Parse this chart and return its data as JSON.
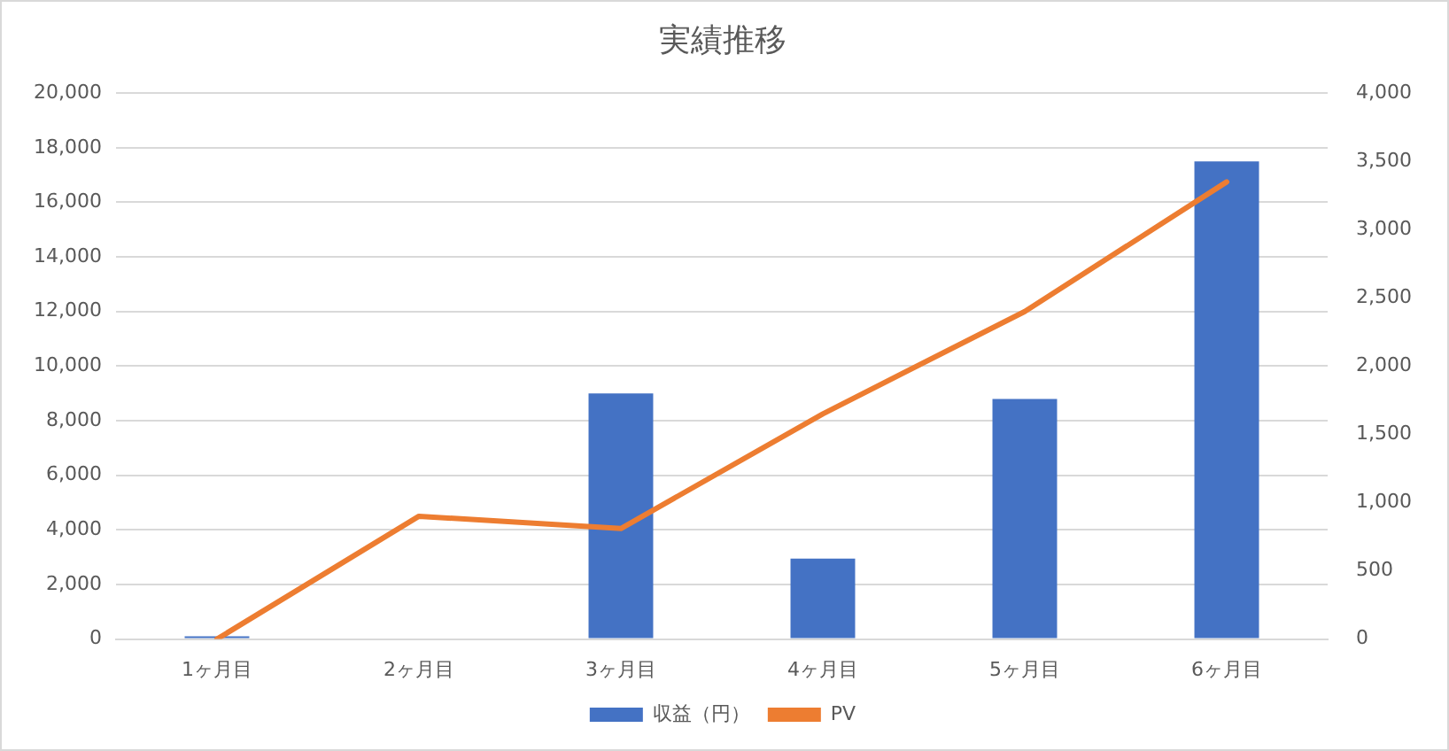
{
  "chart_data": {
    "type": "bar",
    "title": "実績推移",
    "categories": [
      "1ヶ月目",
      "2ヶ月目",
      "3ヶ月目",
      "4ヶ月目",
      "5ヶ月目",
      "6ヶ月目"
    ],
    "series": [
      {
        "name": "収益（円）",
        "color": "#4472c4",
        "values": [
          100,
          0,
          9000,
          2950,
          8800,
          17500
        ]
      },
      {
        "name": "PV",
        "type": "line",
        "axis": "y2",
        "color": "#ed7d31",
        "marker": "none",
        "values": [
          0,
          900,
          810,
          1650,
          2400,
          3350
        ]
      }
    ],
    "ylim": [
      0,
      20000
    ],
    "yticks": [
      0,
      {
        "value": 2000,
        "label": "2,000"
      },
      {
        "value": 4000,
        "label": "4,000"
      },
      {
        "value": 6000,
        "label": "6,000"
      },
      {
        "value": 8000,
        "label": "8,000"
      },
      {
        "value": 10000,
        "label": "10,000"
      },
      {
        "value": 12000,
        "label": "12,000"
      },
      {
        "value": 14000,
        "label": "14,000"
      },
      {
        "value": 16000,
        "label": "16,000"
      },
      {
        "value": 18000,
        "label": "18,000"
      },
      {
        "value": 20000,
        "label": "20,000"
      }
    ],
    "y2lim": [
      0,
      4000
    ],
    "y2ticks": [
      0,
      500,
      {
        "value": 1000,
        "label": "1,000"
      },
      {
        "value": 1500,
        "label": "1,500"
      },
      {
        "value": 2000,
        "label": "2,000"
      },
      {
        "value": 2500,
        "label": "2,500"
      },
      {
        "value": 3000,
        "label": "3,000"
      },
      {
        "value": 3500,
        "label": "3,500"
      },
      {
        "value": 4000,
        "label": "4,000"
      }
    ],
    "grid": "y",
    "legend": "bottom"
  }
}
